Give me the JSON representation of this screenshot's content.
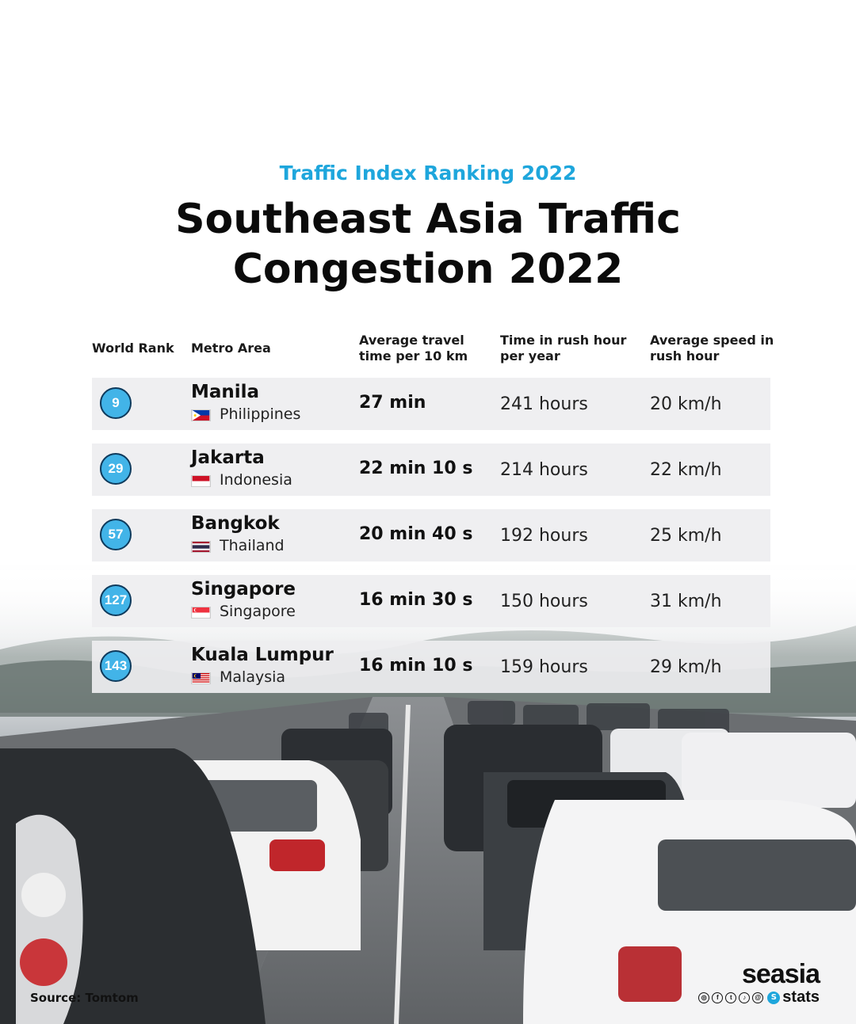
{
  "header": {
    "subtitle": "Traffic Index Ranking 2022",
    "title_line1": "Southeast Asia Traffic",
    "title_line2": "Congestion 2022"
  },
  "table": {
    "columns": {
      "rank": "World Rank",
      "metro": "Metro Area",
      "travel_line1": "Average travel",
      "travel_line2": "time per 10 km",
      "rush_line1": "Time in rush hour",
      "rush_line2": "per year",
      "speed_line1": "Average speed in",
      "speed_line2": "rush hour"
    },
    "rows": [
      {
        "rank": "9",
        "city": "Manila",
        "country": "Philippines",
        "flag": "philippines-flag-icon",
        "travel": "27 min",
        "rush": "241 hours",
        "speed": "20 km/h"
      },
      {
        "rank": "29",
        "city": "Jakarta",
        "country": "Indonesia",
        "flag": "indonesia-flag-icon",
        "travel": "22 min 10 s",
        "rush": "214 hours",
        "speed": "22 km/h"
      },
      {
        "rank": "57",
        "city": "Bangkok",
        "country": "Thailand",
        "flag": "thailand-flag-icon",
        "travel": "20 min 40 s",
        "rush": "192 hours",
        "speed": "25 km/h"
      },
      {
        "rank": "127",
        "city": "Singapore",
        "country": "Singapore",
        "flag": "singapore-flag-icon",
        "travel": "16 min 30 s",
        "rush": "150 hours",
        "speed": "31 km/h"
      },
      {
        "rank": "143",
        "city": "Kuala Lumpur",
        "country": "Malaysia",
        "flag": "malaysia-flag-icon",
        "travel": "16 min 10 s",
        "rush": "159 hours",
        "speed": "29 km/h"
      }
    ]
  },
  "footer": {
    "source": "Source: Tomtom",
    "brand_name": "seasia",
    "brand_suffix": "stats",
    "social_icons": [
      "instagram-icon",
      "facebook-icon",
      "twitter-icon",
      "tiktok-icon",
      "threads-icon"
    ]
  },
  "colors": {
    "accent": "#1ea6dc",
    "badge": "#42b4e8",
    "row_bg": "#eeeef0"
  }
}
